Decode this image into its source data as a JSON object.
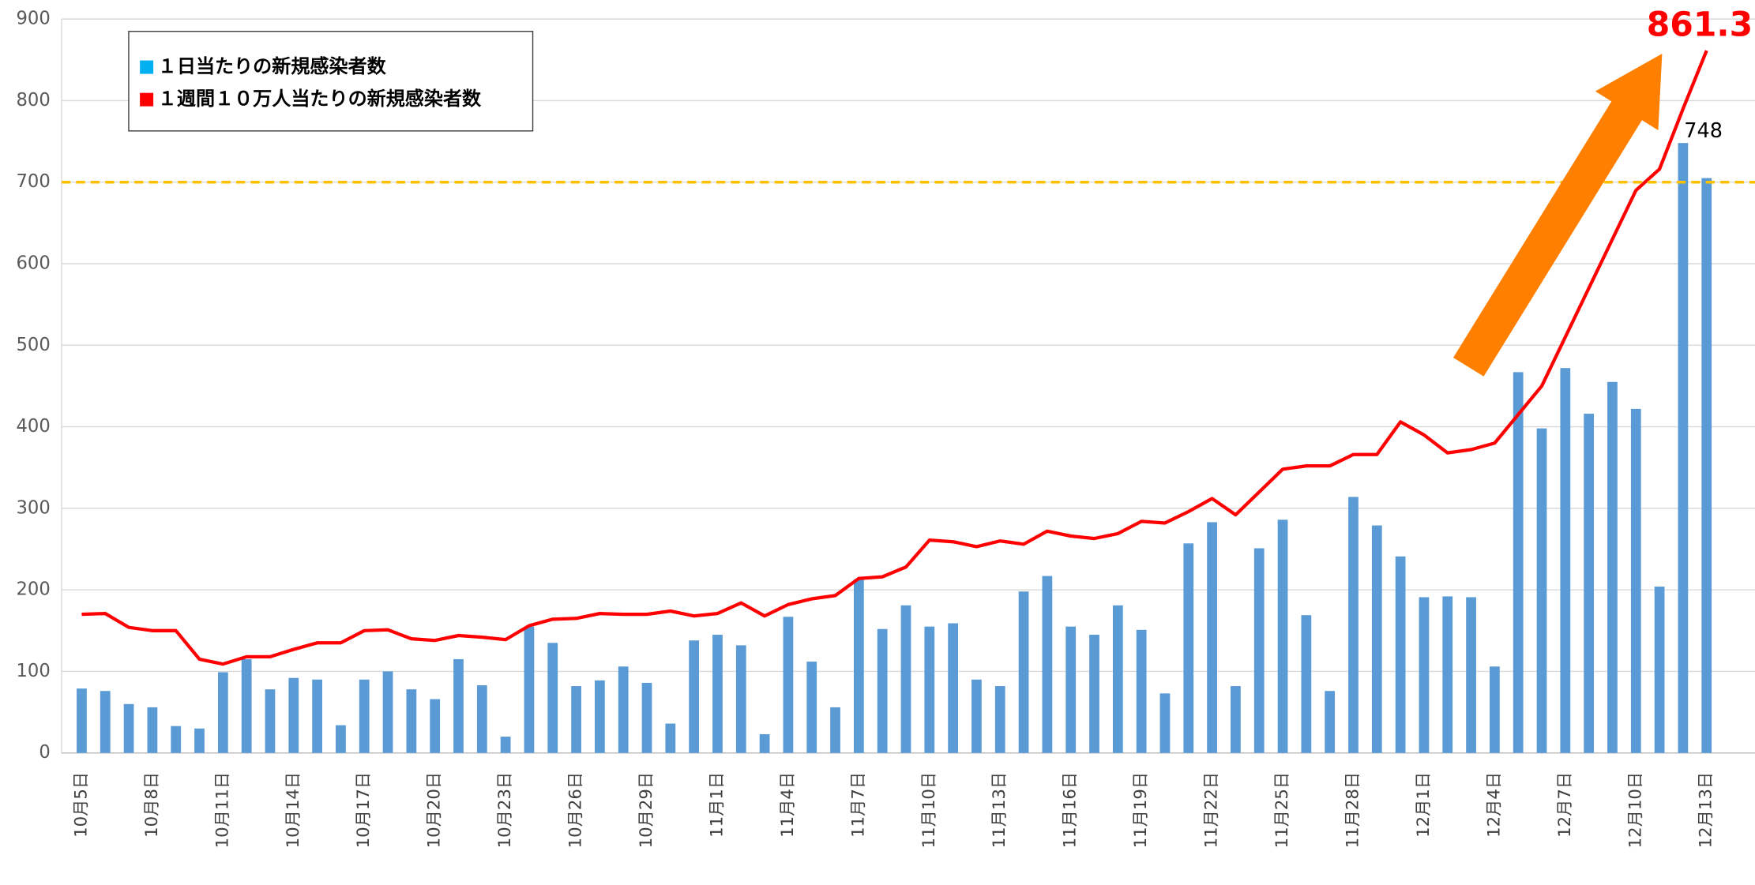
{
  "chart_data": {
    "type": "bar",
    "categories": [
      "10月5日",
      null,
      null,
      "10月8日",
      null,
      null,
      "10月11日",
      null,
      null,
      "10月14日",
      null,
      null,
      "10月17日",
      null,
      null,
      "10月20日",
      null,
      null,
      "10月23日",
      null,
      null,
      "10月26日",
      null,
      null,
      "10月29日",
      null,
      null,
      "11月1日",
      null,
      null,
      "11月4日",
      null,
      null,
      "11月7日",
      null,
      null,
      "11月10日",
      null,
      null,
      "11月13日",
      null,
      null,
      "11月16日",
      null,
      null,
      "11月19日",
      null,
      null,
      "11月22日",
      null,
      null,
      "11月25日",
      null,
      null,
      "11月28日",
      null,
      null,
      "12月1日",
      null,
      null,
      "12月4日",
      null,
      null,
      "12月7日",
      null,
      null,
      "12月10日",
      null,
      null,
      "12月13日"
    ],
    "series": [
      {
        "name": "１日当たりの新規感染者数",
        "type": "bar",
        "color": "#5b9bd5",
        "values": [
          79,
          76,
          60,
          56,
          33,
          30,
          99,
          115,
          78,
          92,
          90,
          34,
          90,
          100,
          78,
          66,
          115,
          83,
          20,
          155,
          135,
          82,
          89,
          106,
          86,
          36,
          138,
          145,
          132,
          23,
          167,
          112,
          56,
          213,
          152,
          181,
          155,
          159,
          90,
          82,
          198,
          217,
          155,
          145,
          181,
          151,
          73,
          257,
          283,
          82,
          251,
          286,
          169,
          76,
          314,
          279,
          241,
          191,
          192,
          191,
          106,
          467,
          398,
          472,
          416,
          455,
          422,
          204,
          748,
          705
        ],
        "value_labels": [
          null,
          null,
          null,
          null,
          null,
          null,
          null,
          null,
          null,
          null,
          null,
          null,
          null,
          null,
          null,
          null,
          null,
          null,
          null,
          null,
          null,
          null,
          null,
          null,
          null,
          null,
          null,
          null,
          null,
          null,
          null,
          null,
          null,
          null,
          null,
          null,
          null,
          null,
          null,
          null,
          null,
          null,
          null,
          null,
          null,
          null,
          null,
          null,
          null,
          null,
          null,
          null,
          null,
          null,
          null,
          null,
          null,
          null,
          null,
          null,
          null,
          null,
          null,
          null,
          null,
          null,
          null,
          null,
          "748",
          null
        ]
      },
      {
        "name": "１週間１０万人当たりの新規感染者数",
        "type": "line",
        "color": "#ff0000",
        "values": [
          170,
          171,
          154,
          150,
          150,
          115,
          109,
          118,
          118,
          127,
          135,
          135,
          150,
          151,
          140,
          138,
          144,
          142,
          139,
          156,
          164,
          165,
          171,
          170,
          170,
          174,
          168,
          171,
          184,
          168,
          182,
          189,
          193,
          214,
          216,
          228,
          261,
          259,
          253,
          260,
          256,
          272,
          266,
          263,
          269,
          284,
          282,
          296,
          312,
          292,
          320,
          348,
          352,
          352,
          366,
          366,
          406,
          390,
          368,
          372,
          380,
          415,
          450,
          510,
          570,
          630,
          690,
          716,
          790,
          861.3
        ],
        "value_labels": [
          null,
          null,
          null,
          null,
          null,
          null,
          null,
          null,
          null,
          null,
          null,
          null,
          null,
          null,
          null,
          null,
          null,
          null,
          null,
          null,
          null,
          null,
          null,
          null,
          null,
          null,
          null,
          null,
          null,
          null,
          null,
          null,
          null,
          null,
          null,
          null,
          null,
          null,
          null,
          null,
          null,
          null,
          null,
          null,
          null,
          null,
          null,
          null,
          null,
          null,
          null,
          null,
          null,
          null,
          null,
          null,
          null,
          null,
          null,
          null,
          null,
          null,
          null,
          null,
          null,
          null,
          null,
          null,
          null,
          "861.3"
        ]
      }
    ],
    "ylim": [
      0,
      900
    ],
    "yticks": [
      0,
      100,
      200,
      300,
      400,
      500,
      600,
      700,
      800,
      900
    ],
    "grid": true,
    "reference_line": {
      "value": 700,
      "color": "#ffc000"
    },
    "legend": "upper left"
  }
}
